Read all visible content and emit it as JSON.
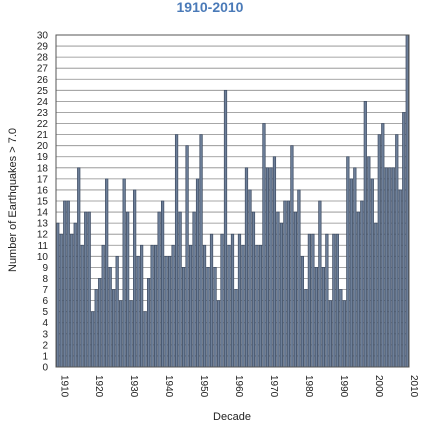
{
  "chart_data": {
    "type": "bar",
    "title": "1910-2010",
    "xlabel": "Decade",
    "ylabel": "Number of Earthquakes > 7.0",
    "ylim": [
      0,
      30
    ],
    "yticks": [
      0,
      1,
      2,
      3,
      4,
      5,
      6,
      7,
      8,
      9,
      10,
      11,
      12,
      13,
      14,
      15,
      16,
      17,
      18,
      19,
      20,
      21,
      22,
      23,
      24,
      25,
      26,
      27,
      28,
      29,
      30
    ],
    "xticks": [
      "1910",
      "1920",
      "1930",
      "1940",
      "1950",
      "1960",
      "1970",
      "1980",
      "1990",
      "2000",
      "2010"
    ],
    "grid": true,
    "categories": [
      "1910",
      "1911",
      "1912",
      "1913",
      "1914",
      "1915",
      "1916",
      "1917",
      "1918",
      "1919",
      "1920",
      "1921",
      "1922",
      "1923",
      "1924",
      "1925",
      "1926",
      "1927",
      "1928",
      "1929",
      "1930",
      "1931",
      "1932",
      "1933",
      "1934",
      "1935",
      "1936",
      "1937",
      "1938",
      "1939",
      "1940",
      "1941",
      "1942",
      "1943",
      "1944",
      "1945",
      "1946",
      "1947",
      "1948",
      "1949",
      "1950",
      "1951",
      "1952",
      "1953",
      "1954",
      "1955",
      "1956",
      "1957",
      "1958",
      "1959",
      "1960",
      "1961",
      "1962",
      "1963",
      "1964",
      "1965",
      "1966",
      "1967",
      "1968",
      "1969",
      "1970",
      "1971",
      "1972",
      "1973",
      "1974",
      "1975",
      "1976",
      "1977",
      "1978",
      "1979",
      "1980",
      "1981",
      "1982",
      "1983",
      "1984",
      "1985",
      "1986",
      "1987",
      "1988",
      "1989",
      "1990",
      "1991",
      "1992",
      "1993",
      "1994",
      "1995",
      "1996",
      "1997",
      "1998",
      "1999",
      "2000",
      "2001",
      "2002",
      "2003",
      "2004",
      "2005",
      "2006",
      "2007",
      "2008",
      "2009",
      "2010"
    ],
    "values": [
      13,
      12,
      15,
      15,
      12,
      13,
      18,
      11,
      14,
      14,
      5,
      7,
      8,
      11,
      17,
      9,
      7,
      10,
      6,
      17,
      14,
      6,
      16,
      10,
      11,
      5,
      8,
      11,
      11,
      14,
      15,
      10,
      10,
      11,
      21,
      14,
      9,
      20,
      11,
      14,
      17,
      21,
      11,
      9,
      12,
      9,
      6,
      12,
      25,
      11,
      12,
      7,
      12,
      11,
      18,
      16,
      14,
      11,
      11,
      22,
      18,
      18,
      19,
      14,
      13,
      15,
      15,
      20,
      14,
      16,
      10,
      7,
      12,
      12,
      9,
      15,
      9,
      12,
      6,
      12,
      12,
      7,
      6,
      19,
      17,
      18,
      14,
      15,
      24,
      19,
      17,
      13,
      21,
      22,
      18,
      18,
      18,
      21,
      16,
      23,
      30
    ]
  }
}
